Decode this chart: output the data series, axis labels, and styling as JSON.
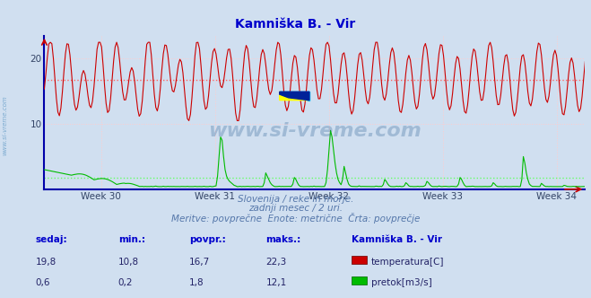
{
  "title": "Kamniška B. - Vir",
  "title_color": "#0000cc",
  "bg_color": "#d0dff0",
  "plot_bg_color": "#d0dff0",
  "xlabel": "",
  "ylabel": "",
  "xlim": [
    29.5,
    34.25
  ],
  "ylim": [
    0,
    23.5
  ],
  "temp_avg": 16.7,
  "flow_avg": 1.8,
  "week_ticks": [
    30,
    31,
    32,
    33,
    34
  ],
  "week_labels": [
    "Week 30",
    "Week 31",
    "Week 32",
    "Week 33",
    "Week 34"
  ],
  "subtitle1": "Slovenija / reke in morje.",
  "subtitle2": "zadnji mesec / 2 uri.",
  "subtitle3": "Meritve: povprečne  Enote: metrične  Črta: povprečje",
  "subtitle_color": "#5577aa",
  "footer_header_color": "#0000cc",
  "footer_value_color": "#222266",
  "temp_color": "#cc0000",
  "flow_color": "#00bb00",
  "avg_temp_color": "#ff6666",
  "avg_flow_color": "#66ff66",
  "grid_h_color": "#ffcccc",
  "grid_v_color": "#ffcccc",
  "axis_color": "#0000aa",
  "watermark_color": "#336699",
  "watermark_alpha": 0.3,
  "n_points": 360,
  "footer": {
    "sedaj_temp": "19,8",
    "sedaj_flow": "0,6",
    "min_temp": "10,8",
    "min_flow": "0,2",
    "povpr_temp": "16,7",
    "povpr_flow": "1,8",
    "maks_temp": "22,3",
    "maks_flow": "12,1"
  }
}
